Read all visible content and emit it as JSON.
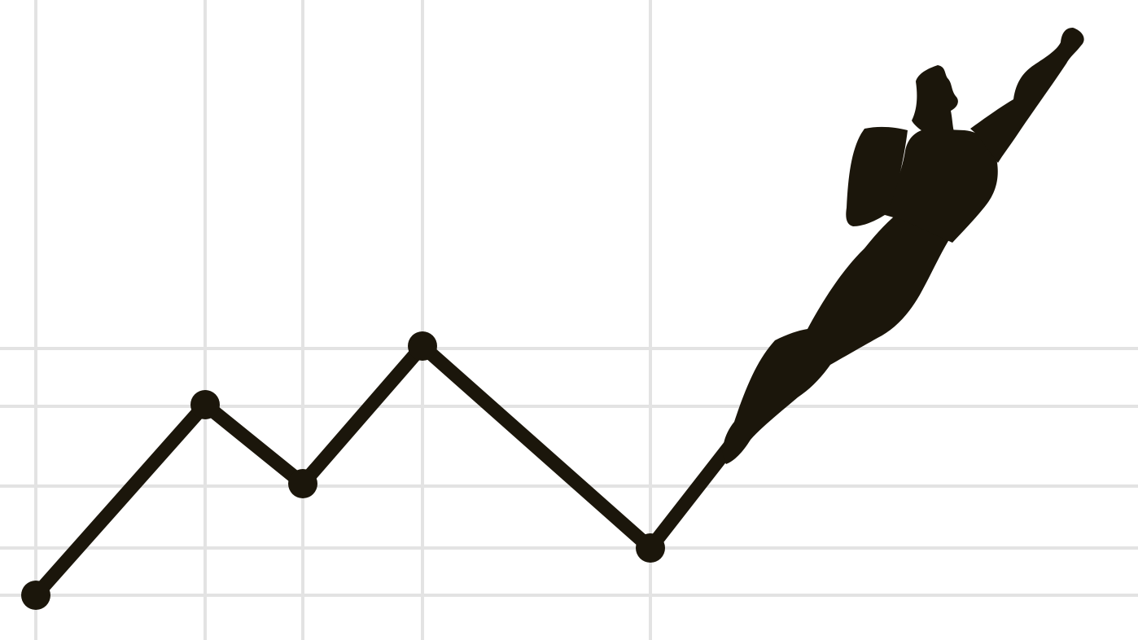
{
  "illustration": {
    "subject": "superhero-flying-from-line-graph",
    "colors": {
      "background": "#ffffff",
      "grid": "#e3e3e3",
      "ink": "#1b160b"
    },
    "grid": true,
    "line_points": [
      {
        "x": 0,
        "y": 0
      },
      {
        "x": 1,
        "y": 4
      },
      {
        "x": 2,
        "y": 2
      },
      {
        "x": 3,
        "y": 5
      },
      {
        "x": 4,
        "y": 1
      }
    ],
    "figure_icon": "flying-superhero-silhouette-icon"
  }
}
